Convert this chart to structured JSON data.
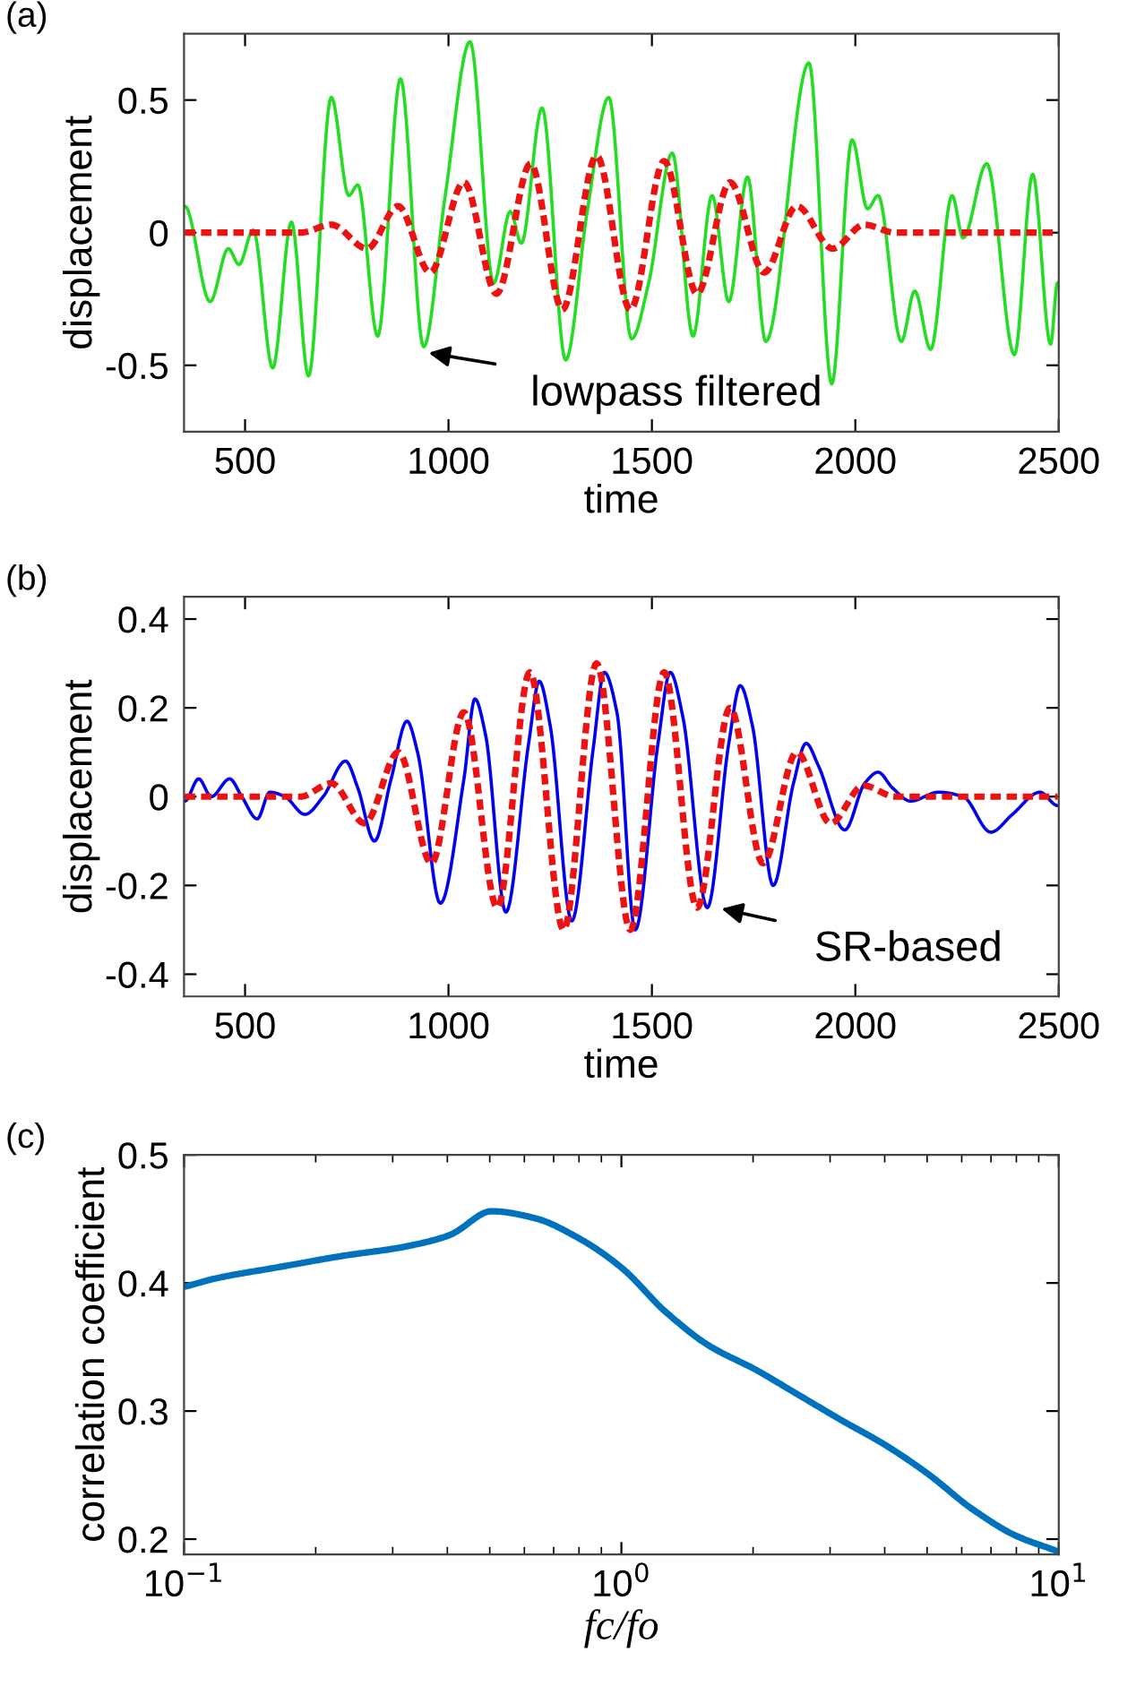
{
  "chart_data": [
    {
      "type": "line",
      "title": "(a)",
      "xlabel": "time",
      "ylabel": "displacement",
      "xlim": [
        350,
        2500
      ],
      "ylim": [
        -0.75,
        0.75
      ],
      "xticks": [
        500,
        1000,
        1500,
        2000,
        2500
      ],
      "yticks": [
        -0.5,
        0,
        0.5
      ],
      "grid": false,
      "series": [
        {
          "color": "#22dd22",
          "line_style": "solid",
          "x": [
            352,
            414,
            459,
            485,
            520,
            568,
            614,
            656,
            712,
            755,
            777,
            826,
            882,
            939,
            992,
            1053,
            1111,
            1152,
            1179,
            1230,
            1288,
            1341,
            1394,
            1450,
            1492,
            1550,
            1601,
            1648,
            1689,
            1735,
            1780,
            1886,
            1942,
            1992,
            2030,
            2056,
            2113,
            2146,
            2185,
            2238,
            2265,
            2323,
            2391,
            2436,
            2480,
            2497
          ],
          "values": [
            0.1,
            -0.26,
            -0.06,
            -0.12,
            0.01,
            -0.51,
            0.04,
            -0.54,
            0.51,
            0.14,
            0.18,
            -0.39,
            0.58,
            -0.43,
            0.14,
            0.72,
            -0.19,
            0.08,
            -0.04,
            0.47,
            -0.48,
            0.08,
            0.51,
            -0.4,
            -0.19,
            0.3,
            -0.39,
            0.14,
            -0.26,
            0.21,
            -0.41,
            0.64,
            -0.57,
            0.35,
            0.09,
            0.14,
            -0.41,
            -0.22,
            -0.44,
            0.14,
            -0.02,
            0.26,
            -0.46,
            0.22,
            -0.42,
            -0.19
          ]
        },
        {
          "color": "#ee1111",
          "line_style": "dashed",
          "x": [
            352,
            636,
            712,
            800,
            876,
            955,
            1038,
            1118,
            1202,
            1280,
            1364,
            1447,
            1530,
            1611,
            1692,
            1776,
            1856,
            1944,
            2022,
            2098,
            2497
          ],
          "values": [
            0,
            0,
            0.03,
            -0.06,
            0.1,
            -0.15,
            0.19,
            -0.23,
            0.26,
            -0.29,
            0.29,
            -0.29,
            0.27,
            -0.23,
            0.19,
            -0.15,
            0.1,
            -0.06,
            0.03,
            0,
            0
          ]
        }
      ],
      "annotations": [
        {
          "text": "lowpass filtered",
          "x": 939,
          "y": -0.45
        }
      ]
    },
    {
      "type": "line",
      "title": "(b)",
      "xlabel": "time",
      "ylabel": "displacement",
      "xlim": [
        350,
        2500
      ],
      "ylim": [
        -0.45,
        0.45
      ],
      "xticks": [
        500,
        1000,
        1500,
        2000,
        2500
      ],
      "yticks": [
        -0.4,
        -0.2,
        0,
        0.2,
        0.4
      ],
      "grid": false,
      "series": [
        {
          "color": "#0000ee",
          "line_style": "solid",
          "x": [
            352,
            386,
            417,
            462,
            492,
            530,
            561,
            598,
            647,
            692,
            747,
            777,
            818,
            859,
            898,
            924,
            980,
            1038,
            1065,
            1091,
            1141,
            1197,
            1223,
            1250,
            1303,
            1356,
            1383,
            1414,
            1459,
            1515,
            1545,
            1576,
            1636,
            1689,
            1717,
            1747,
            1798,
            1848,
            1879,
            1909,
            1974,
            2023,
            2056,
            2091,
            2136,
            2205,
            2265,
            2333,
            2386,
            2454,
            2497
          ],
          "values": [
            -0.01,
            0.04,
            0.0,
            0.04,
            0,
            -0.05,
            0.01,
            0,
            -0.04,
            0,
            0.08,
            0.02,
            -0.1,
            0.04,
            0.17,
            0.1,
            -0.24,
            0.04,
            0.22,
            0.14,
            -0.26,
            0.12,
            0.26,
            0.16,
            -0.28,
            0.11,
            0.28,
            0.19,
            -0.3,
            0.12,
            0.28,
            0.18,
            -0.25,
            0.12,
            0.25,
            0.16,
            -0.2,
            0.03,
            0.12,
            0.07,
            -0.075,
            0.03,
            0.055,
            0.02,
            -0.01,
            0.01,
            0,
            -0.08,
            -0.04,
            0.01,
            -0.02
          ]
        },
        {
          "color": "#ee1111",
          "line_style": "dashed",
          "x": [
            352,
            636,
            712,
            794,
            877,
            958,
            1038,
            1120,
            1200,
            1283,
            1364,
            1447,
            1530,
            1611,
            1692,
            1773,
            1856,
            1939,
            2020,
            2098,
            2497
          ],
          "values": [
            0,
            0,
            0.03,
            -0.06,
            0.1,
            -0.15,
            0.19,
            -0.25,
            0.28,
            -0.3,
            0.3,
            -0.3,
            0.28,
            -0.25,
            0.2,
            -0.15,
            0.1,
            -0.06,
            0.025,
            0,
            0
          ]
        }
      ],
      "annotations": [
        {
          "text": "SR-based",
          "x": 1659,
          "y": -0.25
        }
      ]
    },
    {
      "type": "line",
      "title": "(c)",
      "xlabel": "fc/fo",
      "ylabel": "correlation coefficient",
      "log": "x",
      "xlim": [
        0.1,
        10
      ],
      "ylim": [
        0.188,
        0.5
      ],
      "xticks": [
        {
          "value": 0.1,
          "label": "10$^{−1}$"
        },
        {
          "value": 1,
          "label": "10$^{0}$"
        },
        {
          "value": 10,
          "label": "10$^{1}$"
        }
      ],
      "yticks": [
        0.2,
        0.3,
        0.4,
        0.5
      ],
      "grid": false,
      "series": [
        {
          "color": "#0072bd",
          "line_style": "solid",
          "x": [
            0.1,
            0.1196,
            0.156,
            0.229,
            0.316,
            0.402,
            0.504,
            0.628,
            0.789,
            1.0,
            1.257,
            1.587,
            2.01,
            2.53,
            3.18,
            3.99,
            5.02,
            6.31,
            7.94,
            10
          ],
          "values": [
            0.397,
            0.404,
            0.411,
            0.421,
            0.428,
            0.437,
            0.456,
            0.451,
            0.436,
            0.412,
            0.378,
            0.351,
            0.333,
            0.313,
            0.293,
            0.274,
            0.251,
            0.224,
            0.203,
            0.19
          ]
        }
      ]
    }
  ]
}
